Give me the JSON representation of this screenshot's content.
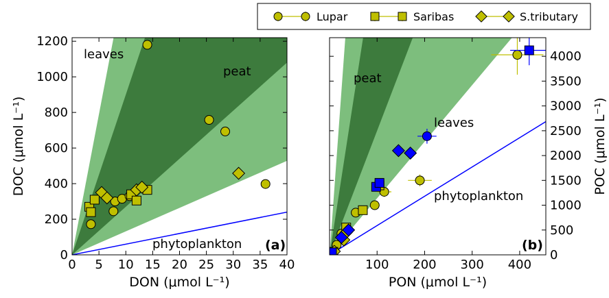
{
  "chart_data": [
    {
      "type": "scatter",
      "xlabel": "DON (μmol L⁻¹)",
      "ylabel": "DOC (μmol L⁻¹)",
      "panel_label": "(a)",
      "xlim": [
        0,
        40
      ],
      "ylim": [
        0,
        1220
      ],
      "xticks": [
        0,
        5,
        10,
        15,
        20,
        25,
        30,
        35,
        40
      ],
      "yticks": [
        0,
        200,
        400,
        600,
        800,
        1000,
        1200
      ],
      "bands": [
        {
          "label": "leaves",
          "color": "#7dbe7d",
          "label_color": "#008000",
          "slopes": [
            13.2,
            158
          ]
        },
        {
          "label": "peat",
          "color": "#3d7b3d",
          "label_color": "#000000",
          "slopes": [
            27,
            90
          ]
        }
      ],
      "line": {
        "label": "phytoplankton",
        "color": "#0000ff",
        "slope": 6
      },
      "series": [
        {
          "name": "Lupar",
          "marker": "circle",
          "color": "#bfbf00",
          "x": [
            3.5,
            7.7,
            8,
            9.3,
            10.7,
            14,
            25.5,
            28.5,
            36
          ],
          "values": [
            172,
            245,
            300,
            315,
            330,
            1180,
            758,
            693,
            398
          ]
        },
        {
          "name": "Saribas",
          "marker": "square",
          "color": "#bfbf00",
          "x": [
            3.2,
            3.5,
            4.2,
            11,
            12,
            14
          ],
          "values": [
            270,
            240,
            310,
            340,
            305,
            365
          ]
        },
        {
          "name": "S.tributary",
          "marker": "diamond",
          "color": "#bfbf00",
          "x": [
            5.5,
            6.5,
            12,
            13,
            31
          ],
          "values": [
            350,
            320,
            365,
            380,
            458
          ]
        }
      ]
    },
    {
      "type": "scatter",
      "xlabel": "PON (μmol L⁻¹)",
      "y2label": "POC (μmol L⁻¹)",
      "panel_label": "(b)",
      "xlim": [
        0,
        455
      ],
      "y2lim": [
        0,
        4375
      ],
      "xticks": [
        100,
        200,
        300,
        400
      ],
      "y2ticks": [
        0,
        500,
        1000,
        1500,
        2000,
        2500,
        3000,
        3500,
        4000
      ],
      "bands": [
        {
          "label": "leaves",
          "color": "#7dbe7d",
          "label_color": "#008000",
          "slopes": [
            11.4,
            132
          ]
        },
        {
          "label": "peat",
          "color": "#3d7b3d",
          "label_color": "#000000",
          "slopes": [
            25,
            62
          ]
        }
      ],
      "line": {
        "label": "phytoplankton",
        "color": "#0000ff",
        "slope": 5.9
      },
      "series": [
        {
          "marker": "circle",
          "color": "#bfbf00",
          "axis": "y2",
          "x": [
            5,
            15,
            25,
            55,
            95,
            115,
            190,
            395
          ],
          "values": [
            50,
            200,
            430,
            850,
            1000,
            1270,
            1500,
            4030
          ],
          "xerr": [
            null,
            null,
            null,
            null,
            10,
            15,
            25,
            55
          ],
          "yerr": [
            null,
            null,
            null,
            null,
            80,
            100,
            120,
            400
          ]
        },
        {
          "marker": "square",
          "color": "#bfbf00",
          "axis": "y2",
          "x": [
            8,
            35,
            70,
            105
          ],
          "values": [
            60,
            550,
            900,
            1400
          ]
        },
        {
          "marker": "diamond",
          "color": "#bfbf00",
          "axis": "y2",
          "x": [
            10,
            30,
            35
          ],
          "values": [
            70,
            300,
            450
          ]
        },
        {
          "marker": "square",
          "color": "#0000ff",
          "axis": "y2",
          "x": [
            5,
            98,
            105,
            420
          ],
          "values": [
            50,
            1370,
            1450,
            4120
          ],
          "xerr": [
            null,
            null,
            null,
            40
          ],
          "yerr": [
            null,
            null,
            null,
            300
          ]
        },
        {
          "marker": "diamond",
          "color": "#0000ff",
          "axis": "y2",
          "x": [
            25,
            40,
            145,
            170
          ],
          "values": [
            350,
            500,
            2100,
            2050
          ]
        },
        {
          "marker": "circle",
          "color": "#0000ff",
          "axis": "y2",
          "x": [
            205
          ],
          "values": [
            2390
          ],
          "xerr": [
            20
          ],
          "yerr": [
            150
          ]
        }
      ]
    }
  ]
}
